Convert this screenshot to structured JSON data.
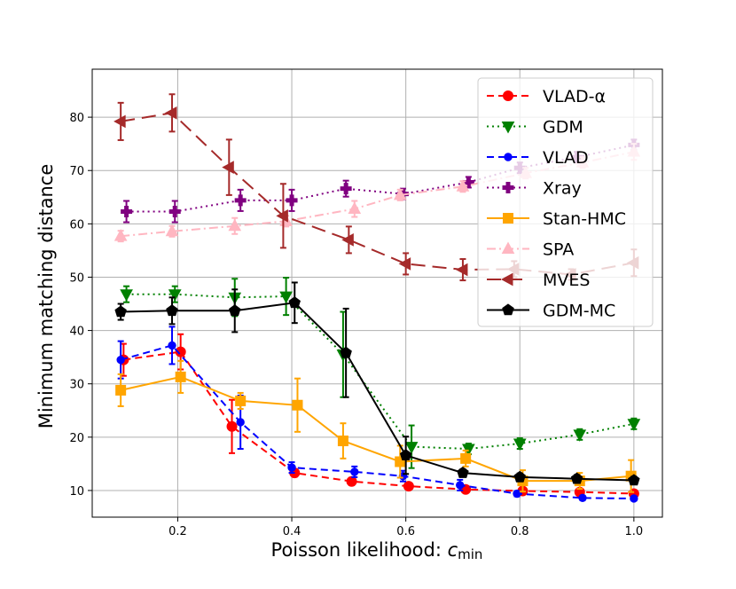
{
  "chart_data": {
    "type": "line",
    "title": "",
    "xlabel": "Poisson likelihood: ",
    "xlabel_var": "c",
    "xlabel_sub": "min",
    "ylabel": "Minimum matching distance",
    "xlim": [
      0.05,
      1.05
    ],
    "ylim": [
      5,
      89
    ],
    "xticks": [
      0.2,
      0.4,
      0.6,
      0.8,
      1.0
    ],
    "xtick_labels": [
      "0.2",
      "0.4",
      "0.6",
      "0.8",
      "1.0"
    ],
    "yticks": [
      10,
      20,
      30,
      40,
      50,
      60,
      70,
      80
    ],
    "ytick_labels": [
      "10",
      "20",
      "30",
      "40",
      "50",
      "60",
      "70",
      "80"
    ],
    "grid": true,
    "legend_position": "top-right",
    "series": [
      {
        "name": "VLAD-α",
        "color": "#ff0000",
        "dash": "dashed",
        "marker": "circle",
        "points": [
          {
            "x": 0.105,
            "y": 34.5,
            "err": 3.0
          },
          {
            "x": 0.205,
            "y": 36.0,
            "err": 3.3
          },
          {
            "x": 0.295,
            "y": 22.0,
            "err": 5.0
          },
          {
            "x": 0.405,
            "y": 13.3,
            "err": 0.7
          },
          {
            "x": 0.505,
            "y": 11.7,
            "err": 0.7
          },
          {
            "x": 0.605,
            "y": 10.8,
            "err": 0.5
          },
          {
            "x": 0.705,
            "y": 10.2,
            "err": 0.5
          },
          {
            "x": 0.805,
            "y": 9.9,
            "err": 0.5
          },
          {
            "x": 0.905,
            "y": 9.7,
            "err": 0.5
          },
          {
            "x": 1.0,
            "y": 9.4,
            "err": 0.5
          }
        ]
      },
      {
        "name": "GDM",
        "color": "#008000",
        "dash": "dotted",
        "marker": "triangle-down",
        "points": [
          {
            "x": 0.11,
            "y": 46.8,
            "err": 1.5
          },
          {
            "x": 0.195,
            "y": 46.8,
            "err": 1.5
          },
          {
            "x": 0.3,
            "y": 46.2,
            "err": 3.5
          },
          {
            "x": 0.39,
            "y": 46.4,
            "err": 3.5
          },
          {
            "x": 0.49,
            "y": 35.5,
            "err": 8.0
          },
          {
            "x": 0.61,
            "y": 18.2,
            "err": 4.0
          },
          {
            "x": 0.71,
            "y": 17.8,
            "err": 1.0
          },
          {
            "x": 0.8,
            "y": 18.8,
            "err": 1.0
          },
          {
            "x": 0.905,
            "y": 20.5,
            "err": 1.0
          },
          {
            "x": 1.0,
            "y": 22.5,
            "err": 1.0
          }
        ]
      },
      {
        "name": "VLAD",
        "color": "#0000ff",
        "dash": "dashed",
        "marker": "circle-small",
        "points": [
          {
            "x": 0.1,
            "y": 34.5,
            "err": 3.5
          },
          {
            "x": 0.19,
            "y": 37.2,
            "err": 3.5
          },
          {
            "x": 0.31,
            "y": 22.8,
            "err": 5.0
          },
          {
            "x": 0.4,
            "y": 14.3,
            "err": 1.0
          },
          {
            "x": 0.51,
            "y": 13.5,
            "err": 1.0
          },
          {
            "x": 0.595,
            "y": 12.7,
            "err": 1.0
          },
          {
            "x": 0.695,
            "y": 11.0,
            "err": 1.0
          },
          {
            "x": 0.795,
            "y": 9.4,
            "err": 0.5
          },
          {
            "x": 0.91,
            "y": 8.6,
            "err": 0.4
          },
          {
            "x": 1.0,
            "y": 8.5,
            "err": 0.4
          }
        ]
      },
      {
        "name": "Xray",
        "color": "#800080",
        "dash": "dotted",
        "marker": "plus",
        "points": [
          {
            "x": 0.11,
            "y": 62.3,
            "err": 2.0
          },
          {
            "x": 0.195,
            "y": 62.3,
            "err": 2.0
          },
          {
            "x": 0.31,
            "y": 64.4,
            "err": 2.0
          },
          {
            "x": 0.4,
            "y": 64.4,
            "err": 2.0
          },
          {
            "x": 0.495,
            "y": 66.6,
            "err": 1.5
          },
          {
            "x": 0.595,
            "y": 65.6,
            "err": 1.0
          },
          {
            "x": 0.71,
            "y": 67.8,
            "err": 1.0
          },
          {
            "x": 0.8,
            "y": 70.5,
            "err": 1.0
          },
          {
            "x": 0.9,
            "y": 72.5,
            "err": 1.0
          },
          {
            "x": 1.0,
            "y": 74.8,
            "err": 1.0
          }
        ]
      },
      {
        "name": "Stan-HMC",
        "color": "#ffa500",
        "dash": "solid",
        "marker": "square",
        "points": [
          {
            "x": 0.1,
            "y": 28.8,
            "err": 3.0
          },
          {
            "x": 0.205,
            "y": 31.3,
            "err": 3.0
          },
          {
            "x": 0.31,
            "y": 26.8,
            "err": 1.5
          },
          {
            "x": 0.41,
            "y": 26.0,
            "err": 5.0
          },
          {
            "x": 0.49,
            "y": 19.3,
            "err": 3.3
          },
          {
            "x": 0.59,
            "y": 15.4,
            "err": 3.0
          },
          {
            "x": 0.705,
            "y": 16.0,
            "err": 1.5
          },
          {
            "x": 0.805,
            "y": 11.8,
            "err": 2.0
          },
          {
            "x": 0.905,
            "y": 11.8,
            "err": 1.5
          },
          {
            "x": 0.995,
            "y": 12.7,
            "err": 3.0
          }
        ]
      },
      {
        "name": "SPA",
        "color": "#ffb6c1",
        "dash": "dashdot",
        "marker": "triangle-up",
        "points": [
          {
            "x": 0.1,
            "y": 57.7,
            "err": 1.0
          },
          {
            "x": 0.19,
            "y": 58.6,
            "err": 1.0
          },
          {
            "x": 0.3,
            "y": 59.6,
            "err": 1.5
          },
          {
            "x": 0.39,
            "y": 60.5,
            "err": 1.0
          },
          {
            "x": 0.51,
            "y": 62.8,
            "err": 1.5
          },
          {
            "x": 0.59,
            "y": 65.4,
            "err": 1.0
          },
          {
            "x": 0.7,
            "y": 67.0,
            "err": 1.0
          },
          {
            "x": 0.81,
            "y": 69.5,
            "err": 1.0
          },
          {
            "x": 0.91,
            "y": 71.5,
            "err": 1.0
          },
          {
            "x": 1.0,
            "y": 73.5,
            "err": 1.5
          }
        ]
      },
      {
        "name": "MVES",
        "color": "#a52a2a",
        "dash": "longdash",
        "marker": "triangle-left",
        "points": [
          {
            "x": 0.1,
            "y": 79.2,
            "err": 3.5
          },
          {
            "x": 0.19,
            "y": 80.8,
            "err": 3.5
          },
          {
            "x": 0.29,
            "y": 70.6,
            "err": 5.2
          },
          {
            "x": 0.385,
            "y": 61.5,
            "err": 6.0
          },
          {
            "x": 0.5,
            "y": 57.0,
            "err": 2.5
          },
          {
            "x": 0.6,
            "y": 52.5,
            "err": 2.0
          },
          {
            "x": 0.7,
            "y": 51.4,
            "err": 2.0
          },
          {
            "x": 0.79,
            "y": 51.5,
            "err": 1.5
          },
          {
            "x": 0.89,
            "y": 50.5,
            "err": 1.0
          },
          {
            "x": 1.0,
            "y": 52.7,
            "err": 2.5
          }
        ]
      },
      {
        "name": "GDM-MC",
        "color": "#000000",
        "dash": "solid",
        "marker": "pentagon",
        "points": [
          {
            "x": 0.1,
            "y": 43.5,
            "err": 1.5
          },
          {
            "x": 0.19,
            "y": 43.7,
            "err": 2.5
          },
          {
            "x": 0.3,
            "y": 43.7,
            "err": 4.0
          },
          {
            "x": 0.405,
            "y": 45.2,
            "err": 3.8
          },
          {
            "x": 0.495,
            "y": 35.8,
            "err": 8.3
          },
          {
            "x": 0.6,
            "y": 16.6,
            "err": 3.5
          },
          {
            "x": 0.7,
            "y": 13.3,
            "err": 0.7
          },
          {
            "x": 0.8,
            "y": 12.5,
            "err": 0.7
          },
          {
            "x": 0.9,
            "y": 12.2,
            "err": 0.7
          },
          {
            "x": 1.0,
            "y": 11.9,
            "err": 0.7
          }
        ]
      }
    ]
  }
}
